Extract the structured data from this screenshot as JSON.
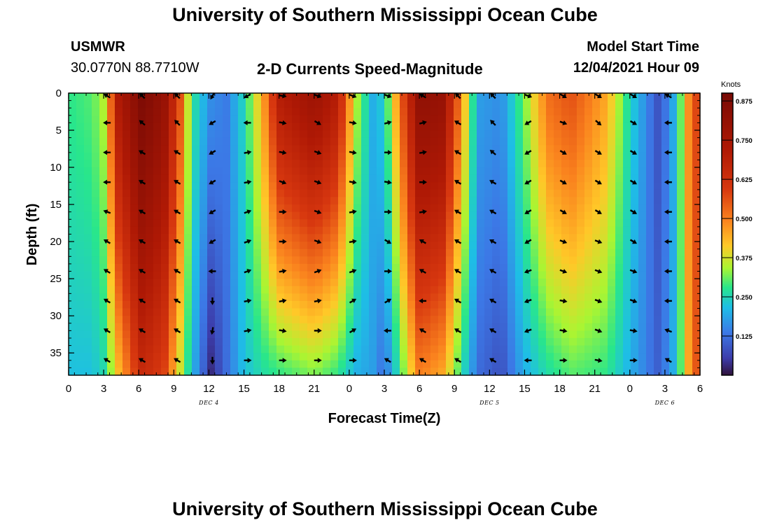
{
  "page": {
    "title": "University of Southern Mississippi Ocean Cube",
    "title_repeat": "University of Southern Mississippi Ocean Cube",
    "station": "USMWR",
    "location": "30.0770N  88.7710W",
    "subtitle": "2-D Currents Speed-Magnitude",
    "model_start_label": "Model Start Time",
    "model_start_value": "12/04/2021 Hour 09"
  },
  "chart_data": {
    "type": "heatmap",
    "title": "2-D Currents Speed-Magnitude",
    "xlabel": "Forecast Time(Z)",
    "ylabel": "Depth (ft)",
    "x_range_hours": [
      0,
      54
    ],
    "y_range_ft": [
      0,
      38
    ],
    "x_tick_labels": [
      "0",
      "3",
      "6",
      "9",
      "12",
      "15",
      "18",
      "21",
      "0",
      "3",
      "6",
      "9",
      "12",
      "15",
      "18",
      "21",
      "0",
      "3",
      "6"
    ],
    "y_ticks": [
      "0",
      "5",
      "10",
      "15",
      "20",
      "25",
      "30",
      "35"
    ],
    "day_labels": [
      {
        "text": "DEC 4",
        "hour": 12
      },
      {
        "text": "DEC 5",
        "hour": 36
      },
      {
        "text": "DEC 6",
        "hour": 51
      }
    ],
    "colorbar": {
      "unit": "Knots",
      "range": [
        0.0,
        0.9
      ],
      "ticks": [
        "0.875",
        "0.750",
        "0.625",
        "0.500",
        "0.375",
        "0.250",
        "0.125"
      ],
      "tick_values": [
        0.875,
        0.75,
        0.625,
        0.5,
        0.375,
        0.25,
        0.125
      ]
    },
    "speed_keyframes": [
      {
        "hour": 0,
        "top": 0.28,
        "bottom": 0.22
      },
      {
        "hour": 2,
        "top": 0.3,
        "bottom": 0.22
      },
      {
        "hour": 3.2,
        "top": 0.36,
        "bottom": 0.26
      },
      {
        "hour": 4,
        "top": 0.7,
        "bottom": 0.4
      },
      {
        "hour": 6.3,
        "top": 0.88,
        "bottom": 0.65
      },
      {
        "hour": 8.2,
        "top": 0.8,
        "bottom": 0.58
      },
      {
        "hour": 9.6,
        "top": 0.55,
        "bottom": 0.36
      },
      {
        "hour": 10.5,
        "top": 0.28,
        "bottom": 0.22
      },
      {
        "hour": 12.2,
        "top": 0.16,
        "bottom": 0.03
      },
      {
        "hour": 13.5,
        "top": 0.14,
        "bottom": 0.12
      },
      {
        "hour": 15,
        "top": 0.25,
        "bottom": 0.22
      },
      {
        "hour": 16.6,
        "top": 0.45,
        "bottom": 0.26
      },
      {
        "hour": 18,
        "top": 0.7,
        "bottom": 0.28
      },
      {
        "hour": 21,
        "top": 0.78,
        "bottom": 0.32
      },
      {
        "hour": 23,
        "top": 0.7,
        "bottom": 0.28
      },
      {
        "hour": 24.6,
        "top": 0.35,
        "bottom": 0.2
      },
      {
        "hour": 26,
        "top": 0.2,
        "bottom": 0.18
      },
      {
        "hour": 27,
        "top": 0.24,
        "bottom": 0.12
      },
      {
        "hour": 28.5,
        "top": 0.55,
        "bottom": 0.3
      },
      {
        "hour": 30,
        "top": 0.82,
        "bottom": 0.5
      },
      {
        "hour": 32,
        "top": 0.8,
        "bottom": 0.45
      },
      {
        "hour": 33.5,
        "top": 0.5,
        "bottom": 0.28
      },
      {
        "hour": 35,
        "top": 0.18,
        "bottom": 0.12
      },
      {
        "hour": 37,
        "top": 0.16,
        "bottom": 0.08
      },
      {
        "hour": 39,
        "top": 0.32,
        "bottom": 0.2
      },
      {
        "hour": 41,
        "top": 0.52,
        "bottom": 0.26
      },
      {
        "hour": 43,
        "top": 0.56,
        "bottom": 0.3
      },
      {
        "hour": 46,
        "top": 0.45,
        "bottom": 0.28
      },
      {
        "hour": 48,
        "top": 0.25,
        "bottom": 0.2
      },
      {
        "hour": 50.5,
        "top": 0.08,
        "bottom": 0.1
      },
      {
        "hour": 52,
        "top": 0.22,
        "bottom": 0.22
      },
      {
        "hour": 53,
        "top": 0.48,
        "bottom": 0.45
      },
      {
        "hour": 54,
        "top": 0.62,
        "bottom": 0.6
      }
    ],
    "vector_hours": [
      3.3,
      6.3,
      9.3,
      12.3,
      15.3,
      18.3,
      21.3,
      24.3,
      27.3,
      30.3,
      33.3,
      36.3,
      39.3,
      42.3,
      45.3,
      48.3,
      51.3
    ],
    "vector_depths_ft": [
      0,
      4,
      8,
      12,
      16,
      20,
      24,
      28,
      32,
      36
    ],
    "vector_directions_deg": [
      [
        300,
        315,
        315,
        210,
        240,
        100,
        110,
        110,
        110,
        300,
        315,
        315,
        110,
        120,
        120,
        120,
        300
      ],
      [
        270,
        310,
        315,
        240,
        270,
        100,
        120,
        100,
        75,
        75,
        300,
        315,
        240,
        110,
        130,
        120,
        270
      ],
      [
        270,
        300,
        300,
        240,
        80,
        100,
        110,
        100,
        90,
        80,
        300,
        310,
        240,
        120,
        120,
        120,
        270
      ],
      [
        270,
        300,
        300,
        240,
        80,
        110,
        110,
        100,
        100,
        90,
        300,
        300,
        240,
        120,
        120,
        120,
        270
      ],
      [
        290,
        300,
        300,
        240,
        70,
        90,
        110,
        80,
        90,
        80,
        300,
        300,
        240,
        120,
        120,
        120,
        270
      ],
      [
        300,
        300,
        300,
        240,
        70,
        90,
        110,
        80,
        120,
        300,
        300,
        300,
        240,
        110,
        110,
        120,
        270
      ],
      [
        300,
        300,
        300,
        270,
        70,
        80,
        70,
        70,
        90,
        300,
        300,
        300,
        250,
        110,
        110,
        110,
        270
      ],
      [
        300,
        300,
        300,
        180,
        80,
        80,
        80,
        60,
        60,
        270,
        300,
        300,
        250,
        100,
        110,
        110,
        270
      ],
      [
        300,
        300,
        300,
        190,
        80,
        100,
        90,
        60,
        270,
        300,
        300,
        300,
        250,
        100,
        110,
        100,
        290
      ],
      [
        300,
        300,
        300,
        180,
        90,
        90,
        90,
        90,
        300,
        300,
        300,
        300,
        270,
        90,
        100,
        90,
        300
      ]
    ]
  }
}
